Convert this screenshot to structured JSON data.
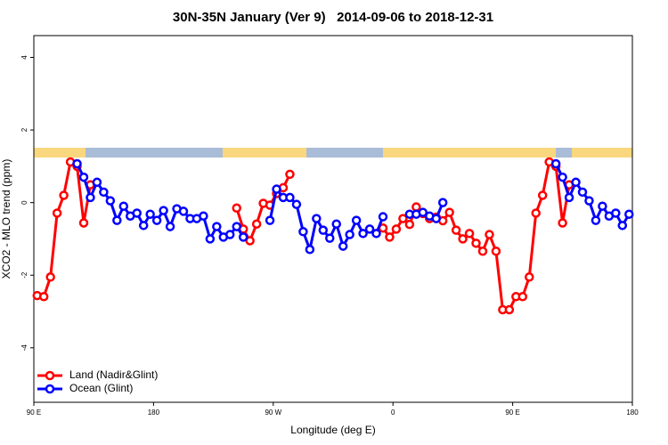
{
  "chart_data": {
    "type": "line",
    "title": "30N-35N January (Ver 9)   2014-09-06 to 2018-12-31",
    "xlabel": "Longitude (deg E)",
    "ylabel": "XCO2 - MLO trend (ppm)",
    "x": [
      92.5,
      97.5,
      102.5,
      107.5,
      112.5,
      117.5,
      122.5,
      127.5,
      132.5,
      137.5,
      142.5,
      147.5,
      152.5,
      157.5,
      162.5,
      167.5,
      172.5,
      177.5,
      182.5,
      187.5,
      192.5,
      197.5,
      202.5,
      207.5,
      212.5,
      217.5,
      222.5,
      227.5,
      232.5,
      237.5,
      242.5,
      247.5,
      252.5,
      257.5,
      262.5,
      267.5,
      272.5,
      277.5,
      282.5,
      287.5,
      292.5,
      297.5,
      302.5,
      307.5,
      312.5,
      317.5,
      322.5,
      327.5,
      332.5,
      337.5,
      342.5,
      347.5,
      352.5,
      357.5,
      362.5,
      367.5,
      372.5,
      377.5,
      382.5,
      387.5,
      392.5,
      397.5,
      402.5,
      407.5,
      412.5,
      417.5,
      422.5,
      427.5,
      432.5,
      437.5,
      442.5,
      447.5,
      452.5,
      457.5,
      462.5,
      467.5,
      472.5,
      477.5,
      482.5,
      487.5,
      492.5,
      497.5,
      502.5,
      507.5,
      512.5,
      517.5,
      522.5,
      527.5,
      532.5,
      537.5
    ],
    "series": [
      {
        "name": "Land (Nadir&Glint)",
        "color": "#ff0000",
        "values": [
          -2.56,
          -2.59,
          -2.05,
          -0.29,
          0.2,
          1.12,
          1.0,
          -0.56,
          0.49,
          null,
          null,
          null,
          null,
          null,
          null,
          null,
          null,
          null,
          null,
          null,
          null,
          null,
          null,
          null,
          null,
          null,
          null,
          null,
          null,
          null,
          -0.15,
          -0.73,
          -1.05,
          -0.59,
          -0.02,
          -0.07,
          0.25,
          0.41,
          0.78,
          null,
          null,
          null,
          null,
          null,
          null,
          null,
          null,
          null,
          null,
          null,
          null,
          null,
          -0.7,
          -0.95,
          -0.73,
          -0.44,
          -0.6,
          -0.12,
          -0.3,
          -0.44,
          -0.4,
          -0.5,
          -0.27,
          -0.76,
          -1.0,
          -0.85,
          -1.12,
          -1.34,
          -0.88,
          -1.34,
          -2.95,
          -2.95,
          -2.59,
          -2.59,
          -2.05,
          -0.29,
          0.2,
          1.12,
          1.0,
          -0.56,
          0.49,
          null,
          null,
          null,
          null,
          null,
          null,
          null,
          null,
          null
        ]
      },
      {
        "name": "Ocean (Glint)",
        "color": "#0000ff",
        "values": [
          null,
          null,
          null,
          null,
          null,
          null,
          1.07,
          0.7,
          0.14,
          0.56,
          0.29,
          0.05,
          -0.49,
          -0.1,
          -0.37,
          -0.29,
          -0.63,
          -0.32,
          -0.49,
          -0.22,
          -0.66,
          -0.17,
          -0.24,
          -0.44,
          -0.44,
          -0.37,
          -1.0,
          -0.66,
          -0.95,
          -0.88,
          -0.66,
          -0.95,
          null,
          null,
          null,
          -0.49,
          0.37,
          0.14,
          0.14,
          -0.05,
          -0.8,
          -1.29,
          -0.44,
          -0.76,
          -0.98,
          -0.59,
          -1.2,
          -0.88,
          -0.49,
          -0.85,
          -0.73,
          -0.85,
          -0.39,
          null,
          null,
          null,
          -0.32,
          -0.32,
          -0.27,
          -0.37,
          -0.44,
          0.0,
          null,
          null,
          null,
          null,
          null,
          null,
          null,
          null,
          null,
          null,
          null,
          null,
          null,
          null,
          null,
          null,
          1.07,
          0.7,
          0.14,
          0.56,
          0.29,
          0.05,
          -0.49,
          -0.1,
          -0.37,
          -0.29,
          -0.63,
          -0.32
        ]
      }
    ],
    "xlim": [
      90,
      540
    ],
    "xticks": [
      {
        "value": 90,
        "label": "90 E"
      },
      180,
      {
        "value": 270,
        "label": "90 W"
      },
      {
        "value": 360,
        "label": "0"
      },
      {
        "value": 450,
        "label": "90 E"
      },
      {
        "value": 540,
        "label": "180"
      }
    ],
    "ylim": [
      -5.5,
      4.6
    ],
    "yticks": [
      4,
      2,
      0,
      -2,
      -4
    ],
    "legend": "bottom-left"
  }
}
